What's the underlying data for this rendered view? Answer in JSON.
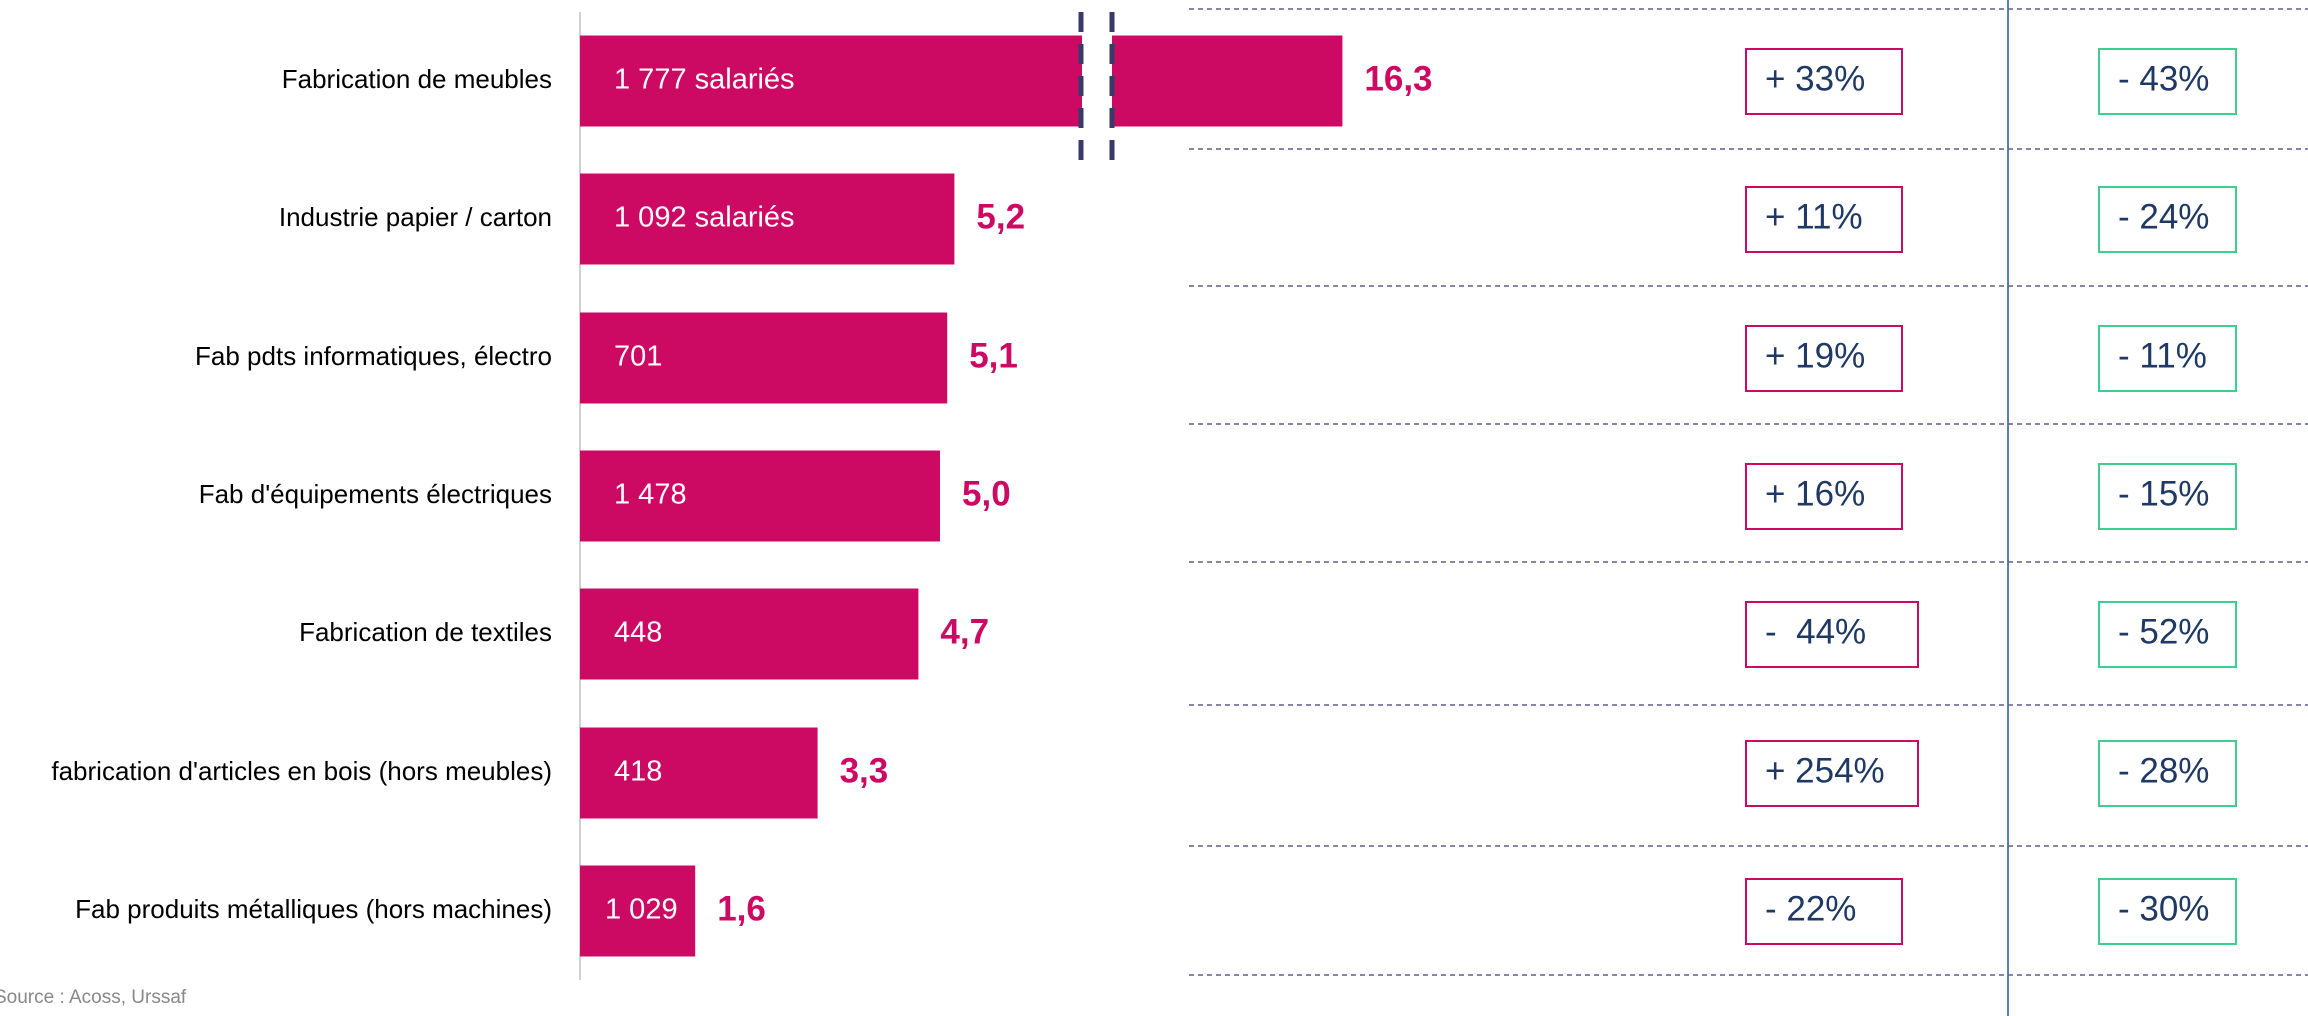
{
  "chart_data": {
    "type": "bar",
    "categories": [
      "Fabrication de meubles",
      "Industrie papier / carton",
      "Fab pdts informatiques, électro",
      "Fab d'équipements électriques",
      "Fabrication de textiles",
      "fabrication d'articles en bois (hors meubles)",
      "Fab produits métalliques (hors machines)"
    ],
    "values": [
      16.3,
      5.2,
      5.1,
      5.0,
      4.7,
      3.3,
      1.6
    ],
    "value_labels": [
      "16,3",
      "5,2",
      "5,1",
      "5,0",
      "4,7",
      "3,3",
      "1,6"
    ],
    "bar_labels": [
      "1 777 salariés",
      "1 092 salariés",
      "701",
      "1 478",
      "448",
      "418",
      "1 029"
    ],
    "color": "#cc0a63",
    "xlim": [
      0,
      17
    ],
    "column_1": [
      "+ 33%",
      "+ 11%",
      "+ 19%",
      "+ 16%",
      "-  44%",
      "+ 254%",
      "- 22%"
    ],
    "column_2": [
      "- 43%",
      "- 24%",
      "- 11%",
      "- 15%",
      "- 52%",
      "- 28%",
      "- 30%"
    ],
    "source": "Source : Acoss, Urssaf"
  }
}
